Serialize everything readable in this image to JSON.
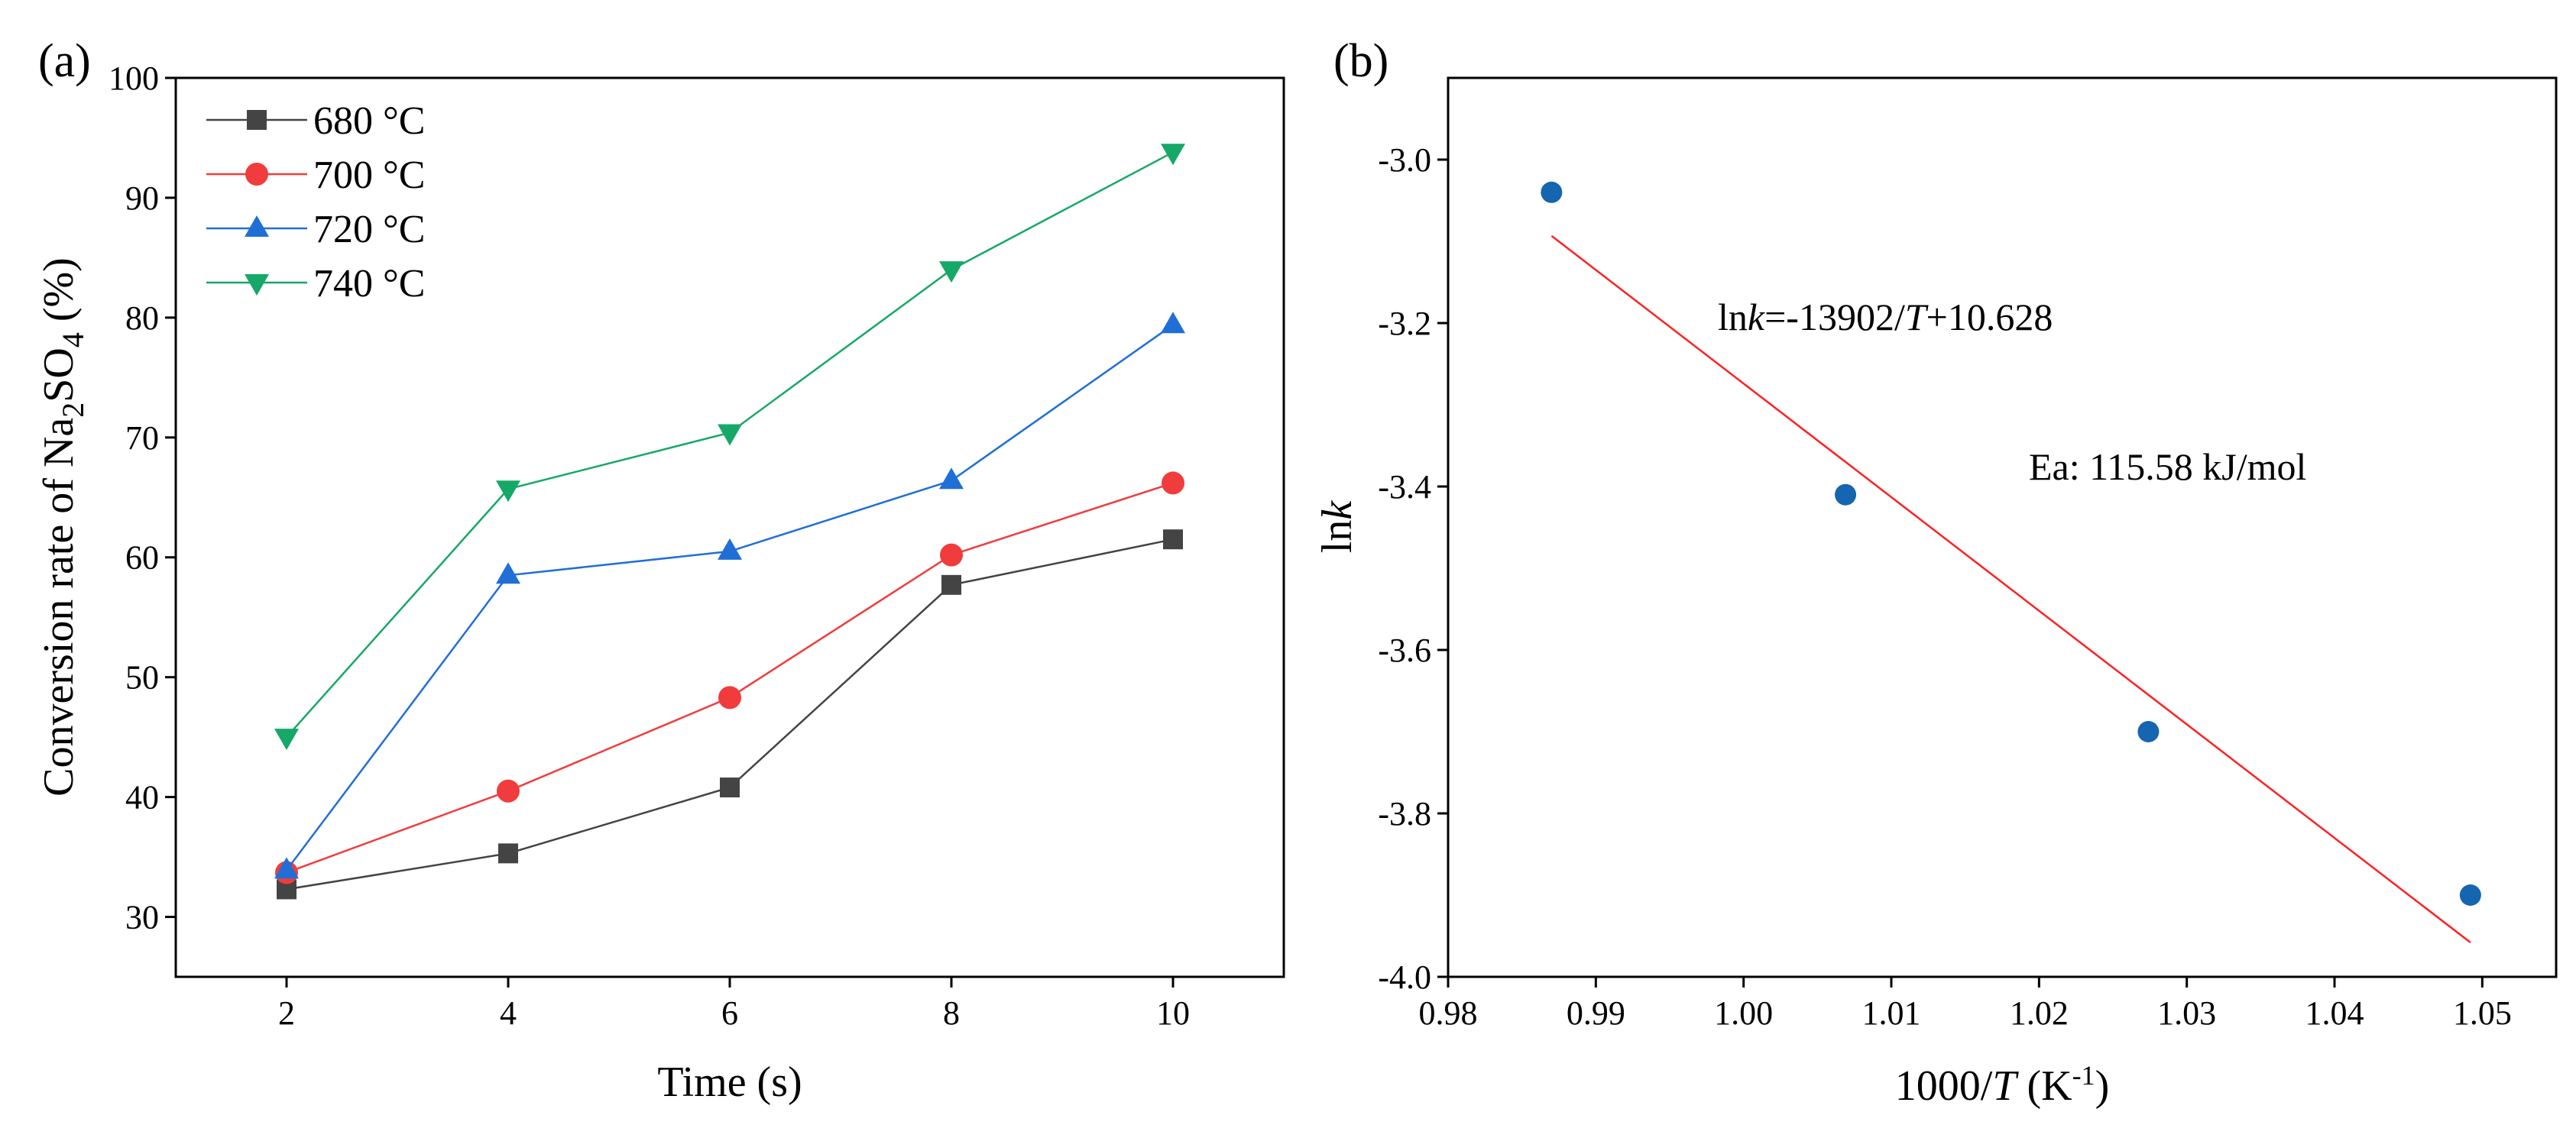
{
  "chart_data": [
    {
      "panel_label": "(a)",
      "type": "line",
      "x": [
        2,
        4,
        6,
        8,
        10
      ],
      "xticks": [
        2,
        4,
        6,
        8,
        10
      ],
      "yticks": [
        30,
        40,
        50,
        60,
        70,
        80,
        90,
        100
      ],
      "xlim": [
        1,
        11
      ],
      "ylim": [
        25,
        100
      ],
      "xlabel": "Time (s)",
      "ylabel_main": "Conversion rate of Na",
      "ylabel_sub1": "2",
      "ylabel_mid": "SO",
      "ylabel_sub2": "4",
      "ylabel_end": " (%)",
      "legend_position": "top-left",
      "grid": false,
      "series": [
        {
          "name": "680 °C",
          "color": "#444444",
          "marker": "square",
          "values": [
            32.3,
            35.3,
            40.8,
            57.7,
            61.5
          ]
        },
        {
          "name": "700 °C",
          "color": "#f03c3c",
          "marker": "circle",
          "values": [
            33.7,
            40.5,
            48.3,
            60.2,
            66.2
          ]
        },
        {
          "name": "720 °C",
          "color": "#1f6fd6",
          "marker": "triangle-up",
          "values": [
            33.9,
            58.5,
            60.5,
            66.4,
            79.4
          ]
        },
        {
          "name": "740 °C",
          "color": "#16a867",
          "marker": "triangle-down",
          "values": [
            45.0,
            65.7,
            70.4,
            84.0,
            93.8
          ]
        }
      ]
    },
    {
      "panel_label": "(b)",
      "type": "scatter",
      "x": [
        0.987,
        1.0069,
        1.0274,
        1.0492
      ],
      "y": [
        -3.04,
        -3.41,
        -3.7,
        -3.9
      ],
      "xticks": [
        "0.98",
        "0.99",
        "1.00",
        "1.01",
        "1.02",
        "1.03",
        "1.04",
        "1.05"
      ],
      "yticks": [
        "-3.0",
        "-3.2",
        "-3.4",
        "-3.6",
        "-3.8",
        "-4.0"
      ],
      "xlim": [
        0.98,
        1.055
      ],
      "ylim": [
        -4.0,
        -2.9
      ],
      "xlabel_pre": "1000/",
      "xlabel_italic": "T",
      "xlabel_post": " (K",
      "xlabel_sup": "-1",
      "xlabel_close": ")",
      "ylabel_pre": "ln",
      "ylabel_italic": "k",
      "grid": false,
      "point_color": "#1565b0",
      "fit": {
        "slope": -13.902,
        "intercept": 10.628,
        "x_start": 0.987,
        "x_end": 1.0492,
        "color": "#ff2020"
      },
      "equation": {
        "p1": "ln",
        "p2": "k",
        "p3": "=-13902/",
        "p4": "T",
        "p5": "+10.628"
      },
      "energy_label": "Ea: 115.58 kJ/mol"
    }
  ]
}
